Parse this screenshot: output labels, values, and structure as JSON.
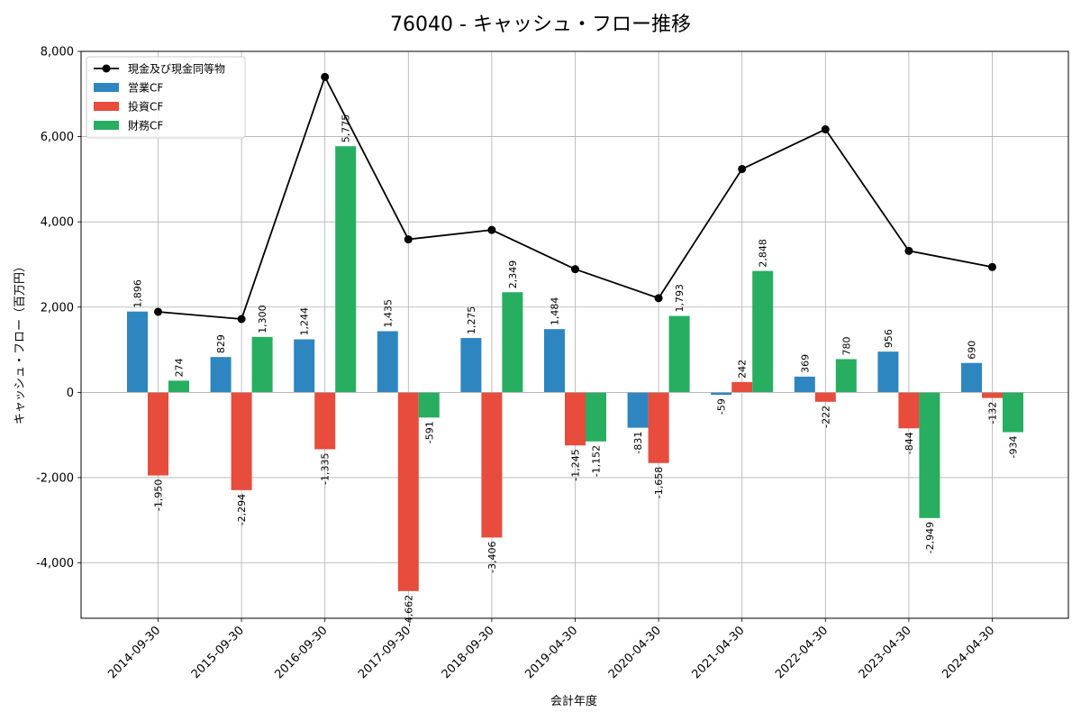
{
  "chart_data": {
    "type": "bar",
    "title": "76040 - キャッシュ・フロー推移",
    "xlabel": "会計年度",
    "ylabel": "キャッシュ・フロー（百万円）",
    "categories": [
      "2014-09-30",
      "2015-09-30",
      "2016-09-30",
      "2017-09-30",
      "2018-09-30",
      "2019-04-30",
      "2020-04-30",
      "2021-04-30",
      "2022-04-30",
      "2023-04-30",
      "2024-04-30"
    ],
    "ylim": [
      -5300,
      8000
    ],
    "yticks": [
      -4000,
      -2000,
      0,
      2000,
      4000,
      6000,
      8000
    ],
    "ytick_labels": [
      "-4,000",
      "-2,000",
      "0",
      "2,000",
      "4,000",
      "6,000",
      "8,000"
    ],
    "grid": true,
    "legend_position": "top-left",
    "series": [
      {
        "name": "営業CF",
        "type": "bar",
        "color": "#2e86c1",
        "values": [
          1896,
          829,
          1244,
          1435,
          1275,
          1484,
          -831,
          -59,
          369,
          956,
          690
        ],
        "labels": [
          "1,896",
          "829",
          "1,244",
          "1,435",
          "1,275",
          "1,484",
          "-831",
          "-59",
          "369",
          "956",
          "690"
        ]
      },
      {
        "name": "投資CF",
        "type": "bar",
        "color": "#e74c3c",
        "values": [
          -1950,
          -2294,
          -1335,
          -4662,
          -3406,
          -1245,
          -1658,
          242,
          -222,
          -844,
          -132
        ],
        "labels": [
          "-1,950",
          "-2,294",
          "-1,335",
          "-4,662",
          "-3,406",
          "-1,245",
          "-1,658",
          "242",
          "-222",
          "-844",
          "-132"
        ]
      },
      {
        "name": "財務CF",
        "type": "bar",
        "color": "#27ae60",
        "values": [
          274,
          1300,
          5775,
          -591,
          2349,
          -1152,
          1793,
          2848,
          780,
          -2949,
          -934
        ],
        "labels": [
          "274",
          "1,300",
          "5,775",
          "-591",
          "2,349",
          "-1,152",
          "1,793",
          "2,848",
          "780",
          "-2,949",
          "-934"
        ]
      },
      {
        "name": "現金及び現金同等物",
        "type": "line",
        "color": "#000000",
        "values": [
          1890,
          1720,
          7400,
          3590,
          3810,
          2890,
          2210,
          5240,
          6170,
          3320,
          2940
        ]
      }
    ]
  }
}
